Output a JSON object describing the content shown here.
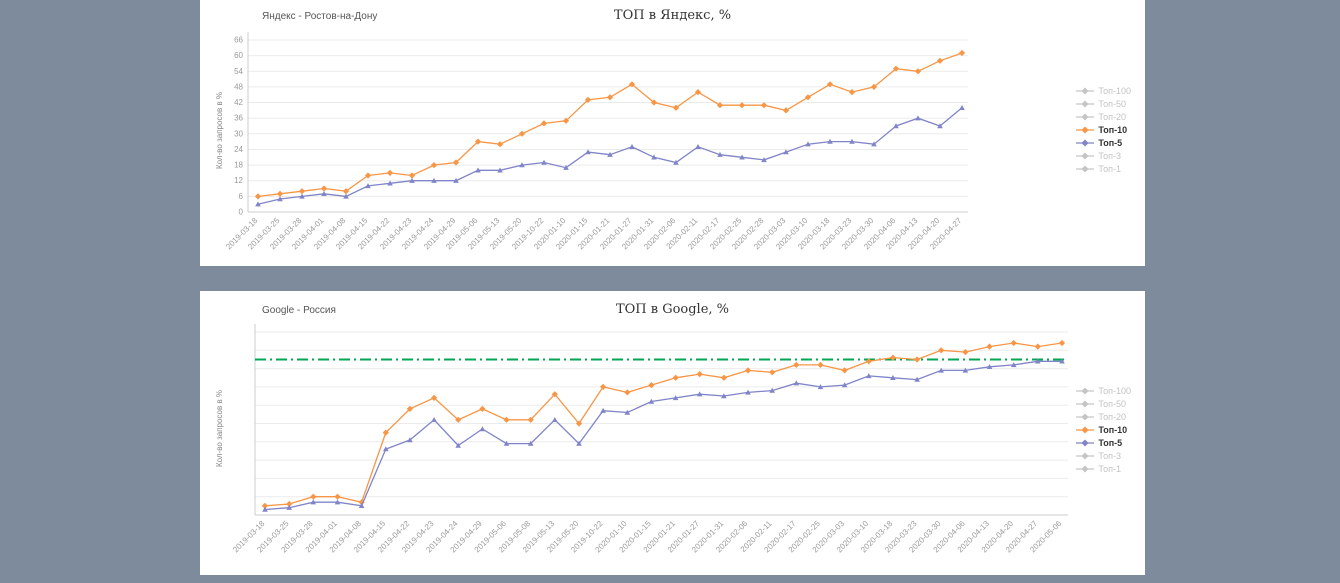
{
  "chart_data": [
    {
      "type": "line",
      "title": "ТОП в Яндекс, %",
      "subtitle": "Яндекс - Ростов-на-Дону",
      "xlabel": "",
      "ylabel": "Кол-во запросов в %",
      "ylim": [
        0,
        66
      ],
      "yticks": [
        0,
        6,
        12,
        18,
        24,
        30,
        36,
        42,
        48,
        54,
        60,
        66
      ],
      "grid": true,
      "legend_position": "right",
      "categories": [
        "2019-03-18",
        "2019-03-25",
        "2019-03-28",
        "2019-04-01",
        "2019-04-08",
        "2019-04-15",
        "2019-04-22",
        "2019-04-23",
        "2019-04-24",
        "2019-04-29",
        "2019-05-06",
        "2019-05-13",
        "2019-05-20",
        "2019-10-22",
        "2020-01-10",
        "2020-01-15",
        "2020-01-21",
        "2020-01-27",
        "2020-01-31",
        "2020-02-06",
        "2020-02-11",
        "2020-02-17",
        "2020-02-25",
        "2020-02-28",
        "2020-03-03",
        "2020-03-10",
        "2020-03-18",
        "2020-03-23",
        "2020-03-30",
        "2020-04-06",
        "2020-04-13",
        "2020-04-20",
        "2020-04-27"
      ],
      "series": [
        {
          "name": "Топ-10",
          "color": "#f79646",
          "marker": "diamond",
          "values": [
            6,
            7,
            8,
            9,
            8,
            14,
            15,
            14,
            18,
            19,
            27,
            26,
            30,
            34,
            35,
            43,
            44,
            49,
            42,
            40,
            46,
            41,
            41,
            41,
            39,
            44,
            49,
            46,
            48,
            55,
            54,
            58,
            61
          ]
        },
        {
          "name": "Топ-5",
          "color": "#8084c8",
          "marker": "triangle",
          "values": [
            3,
            5,
            6,
            7,
            6,
            10,
            11,
            12,
            12,
            12,
            16,
            16,
            18,
            19,
            17,
            23,
            22,
            25,
            21,
            19,
            25,
            22,
            21,
            20,
            23,
            26,
            27,
            27,
            26,
            33,
            36,
            33,
            40
          ]
        }
      ],
      "legend": [
        {
          "label": "Топ-100",
          "color": "#c5c5c5",
          "active": false
        },
        {
          "label": "Топ-50",
          "color": "#c5c5c5",
          "active": false
        },
        {
          "label": "Топ-20",
          "color": "#c5c5c5",
          "active": false
        },
        {
          "label": "Топ-10",
          "color": "#f79646",
          "active": true
        },
        {
          "label": "Топ-5",
          "color": "#8084c8",
          "active": true
        },
        {
          "label": "Топ-3",
          "color": "#c5c5c5",
          "active": false
        },
        {
          "label": "Топ-1",
          "color": "#c5c5c5",
          "active": false
        }
      ]
    },
    {
      "type": "line",
      "title": "ТОП в Google, %",
      "subtitle": "Google - Россия",
      "xlabel": "",
      "ylabel": "Кол-во запросов в %",
      "ylim": [
        0,
        100
      ],
      "yticks": [
        0,
        10,
        20,
        30,
        40,
        50,
        60,
        70,
        80,
        90,
        100
      ],
      "grid": true,
      "legend_position": "right",
      "goal_line": {
        "value": 85,
        "color": "#00a651"
      },
      "categories": [
        "2019-03-18",
        "2019-03-25",
        "2019-03-28",
        "2019-04-01",
        "2019-04-08",
        "2019-04-15",
        "2019-04-22",
        "2019-04-23",
        "2019-04-24",
        "2019-04-29",
        "2019-05-06",
        "2019-05-08",
        "2019-05-13",
        "2019-05-20",
        "2019-10-22",
        "2020-01-10",
        "2020-01-15",
        "2020-01-21",
        "2020-01-27",
        "2020-01-31",
        "2020-02-06",
        "2020-02-11",
        "2020-02-17",
        "2020-02-25",
        "2020-03-03",
        "2020-03-10",
        "2020-03-18",
        "2020-03-23",
        "2020-03-30",
        "2020-04-06",
        "2020-04-13",
        "2020-04-20",
        "2020-04-27",
        "2020-05-06"
      ],
      "series": [
        {
          "name": "Топ-10",
          "color": "#f79646",
          "marker": "diamond",
          "values": [
            5,
            6,
            10,
            10,
            7,
            45,
            58,
            64,
            52,
            58,
            52,
            52,
            66,
            50,
            70,
            67,
            71,
            75,
            77,
            75,
            79,
            78,
            82,
            82,
            79,
            84,
            86,
            85,
            90,
            89,
            92,
            94,
            92,
            94
          ]
        },
        {
          "name": "Топ-5",
          "color": "#8084c8",
          "marker": "triangle",
          "values": [
            3,
            4,
            7,
            7,
            5,
            36,
            41,
            52,
            38,
            47,
            39,
            39,
            52,
            39,
            57,
            56,
            62,
            64,
            66,
            65,
            67,
            68,
            72,
            70,
            71,
            76,
            75,
            74,
            79,
            79,
            81,
            82,
            84,
            84
          ]
        }
      ],
      "legend": [
        {
          "label": "Топ-100",
          "color": "#c5c5c5",
          "active": false
        },
        {
          "label": "Топ-50",
          "color": "#c5c5c5",
          "active": false
        },
        {
          "label": "Топ-20",
          "color": "#c5c5c5",
          "active": false
        },
        {
          "label": "Топ-10",
          "color": "#f79646",
          "active": true
        },
        {
          "label": "Топ-5",
          "color": "#8084c8",
          "active": true
        },
        {
          "label": "Топ-3",
          "color": "#c5c5c5",
          "active": false
        },
        {
          "label": "Топ-1",
          "color": "#c5c5c5",
          "active": false
        }
      ]
    }
  ]
}
